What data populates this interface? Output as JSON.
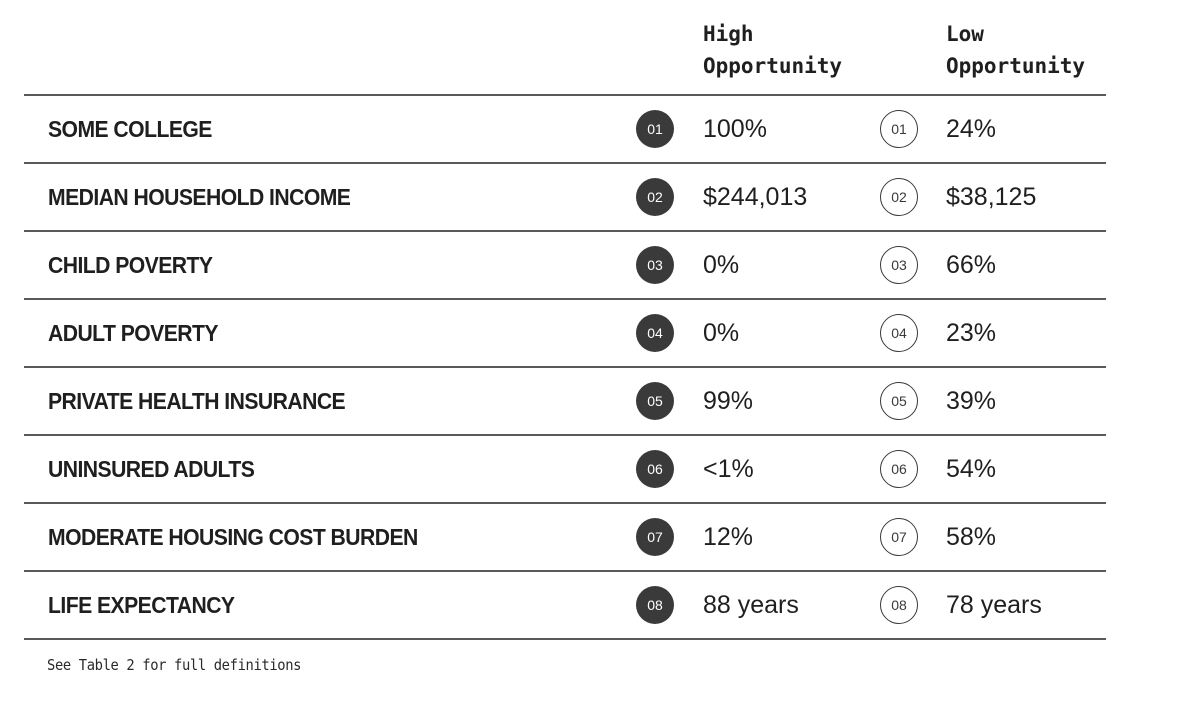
{
  "columns": {
    "high_label": "High\nOpportunity",
    "low_label": "Low\nOpportunity"
  },
  "rows": [
    {
      "label": "SOME COLLEGE",
      "num": "01",
      "high": "100%",
      "low": "24%"
    },
    {
      "label": "MEDIAN HOUSEHOLD INCOME",
      "num": "02",
      "high": "$244,013",
      "low": "$38,125"
    },
    {
      "label": "CHILD POVERTY",
      "num": "03",
      "high": "0%",
      "low": "66%"
    },
    {
      "label": "ADULT POVERTY",
      "num": "04",
      "high": "0%",
      "low": "23%"
    },
    {
      "label": "PRIVATE HEALTH INSURANCE",
      "num": "05",
      "high": "99%",
      "low": "39%"
    },
    {
      "label": "UNINSURED ADULTS",
      "num": "06",
      "high": "<1%",
      "low": "54%"
    },
    {
      "label": "MODERATE HOUSING COST BURDEN",
      "num": "07",
      "high": "12%",
      "low": "58%"
    },
    {
      "label": "LIFE EXPECTANCY",
      "num": "08",
      "high": "88 years",
      "low": "78 years"
    }
  ],
  "footnote": "See Table 2 for full definitions",
  "colors": {
    "badge_fill": "#3a3a3a",
    "rule": "#5a5a5a",
    "text": "#1f1f1f"
  }
}
